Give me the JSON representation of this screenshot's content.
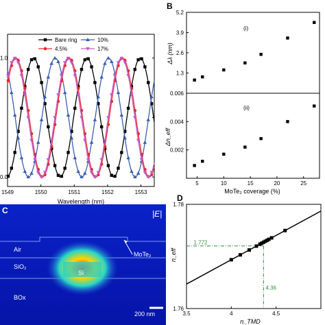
{
  "panels": {
    "B": "B",
    "C": "C",
    "D": "D"
  },
  "chart_data": [
    {
      "type": "line",
      "xlabel": "Wavelength (nm)",
      "ylabel": "",
      "xlim": [
        1549,
        1553.4
      ],
      "ylim": [
        -0.08,
        1.2
      ],
      "xticks": [
        1549,
        1550,
        1551,
        1552,
        1553
      ],
      "yticks": [
        0.0,
        0.5,
        1.0
      ],
      "ytick_labels": [
        "0.0",
        "",
        "1.0"
      ],
      "legend_position": "top",
      "series": [
        {
          "name": "Bare ring",
          "color": "#000000",
          "marker": "square",
          "period": 1.6,
          "min": 1550.58
        },
        {
          "name": "10%",
          "color": "#3a5eb0",
          "marker": "triangle-up",
          "period": 1.6,
          "min": 1551.23
        },
        {
          "name": "4.5%",
          "color": "#e8272e",
          "marker": "circle",
          "period": 1.6,
          "min": 1550.05
        },
        {
          "name": "17%",
          "color": "#c25ac7",
          "marker": "triangle-down",
          "period": 1.6,
          "min": 1551.62
        }
      ]
    },
    {
      "type": "scatter",
      "panel": "B (i)",
      "label": "(i)",
      "ylabel": "Δλ (nm)",
      "xlim": [
        3,
        28
      ],
      "ylim": [
        0,
        5.2
      ],
      "yticks": [
        1.3,
        2.6,
        3.9,
        5.2
      ],
      "x": [
        4.5,
        6,
        10,
        14,
        17,
        22,
        27
      ],
      "y": [
        0.85,
        1.05,
        1.5,
        1.95,
        2.5,
        3.55,
        4.55
      ]
    },
    {
      "type": "scatter",
      "panel": "B (ii)",
      "label": "(ii)",
      "ylabel": "Δn_eff",
      "xlabel": "MoTe₂ coverage (%)",
      "xlim": [
        3,
        28
      ],
      "ylim": [
        0,
        0.006
      ],
      "xticks": [
        5,
        10,
        15,
        20,
        25
      ],
      "yticks": [
        0.002,
        0.004,
        0.006
      ],
      "x": [
        4.5,
        6,
        10,
        14,
        17,
        22,
        27
      ],
      "y": [
        0.0009,
        0.0012,
        0.0017,
        0.0022,
        0.0028,
        0.004,
        0.0051
      ]
    },
    {
      "type": "line",
      "panel": "D",
      "xlabel": "n_TMD",
      "ylabel": "n_eff",
      "xlim": [
        3.5,
        5.0
      ],
      "ylim": [
        1.76,
        1.78
      ],
      "xticks": [
        3.5,
        4.0,
        4.5
      ],
      "yticks": [
        1.76,
        1.78
      ],
      "line": {
        "x": [
          3.5,
          5.0
        ],
        "y": [
          1.7647,
          1.7787
        ]
      },
      "points_x": [
        4.0,
        4.1,
        4.2,
        4.28,
        4.32,
        4.34,
        4.36,
        4.38,
        4.4,
        4.42,
        4.45,
        4.6
      ],
      "annotations": [
        {
          "text": "1.772",
          "x": 3.58,
          "y": 1.7722
        },
        {
          "text": "4.36",
          "x": 4.36,
          "y": 1.7635
        }
      ],
      "guide": {
        "x": 4.36,
        "y": 1.772
      }
    }
  ],
  "image_c": {
    "title": "|E|",
    "labels": {
      "air": "Air",
      "mote2": "MoTe₂",
      "sio2": "SiO₂",
      "si": "Si",
      "box": "BOx"
    },
    "scalebar": "200 nm"
  }
}
